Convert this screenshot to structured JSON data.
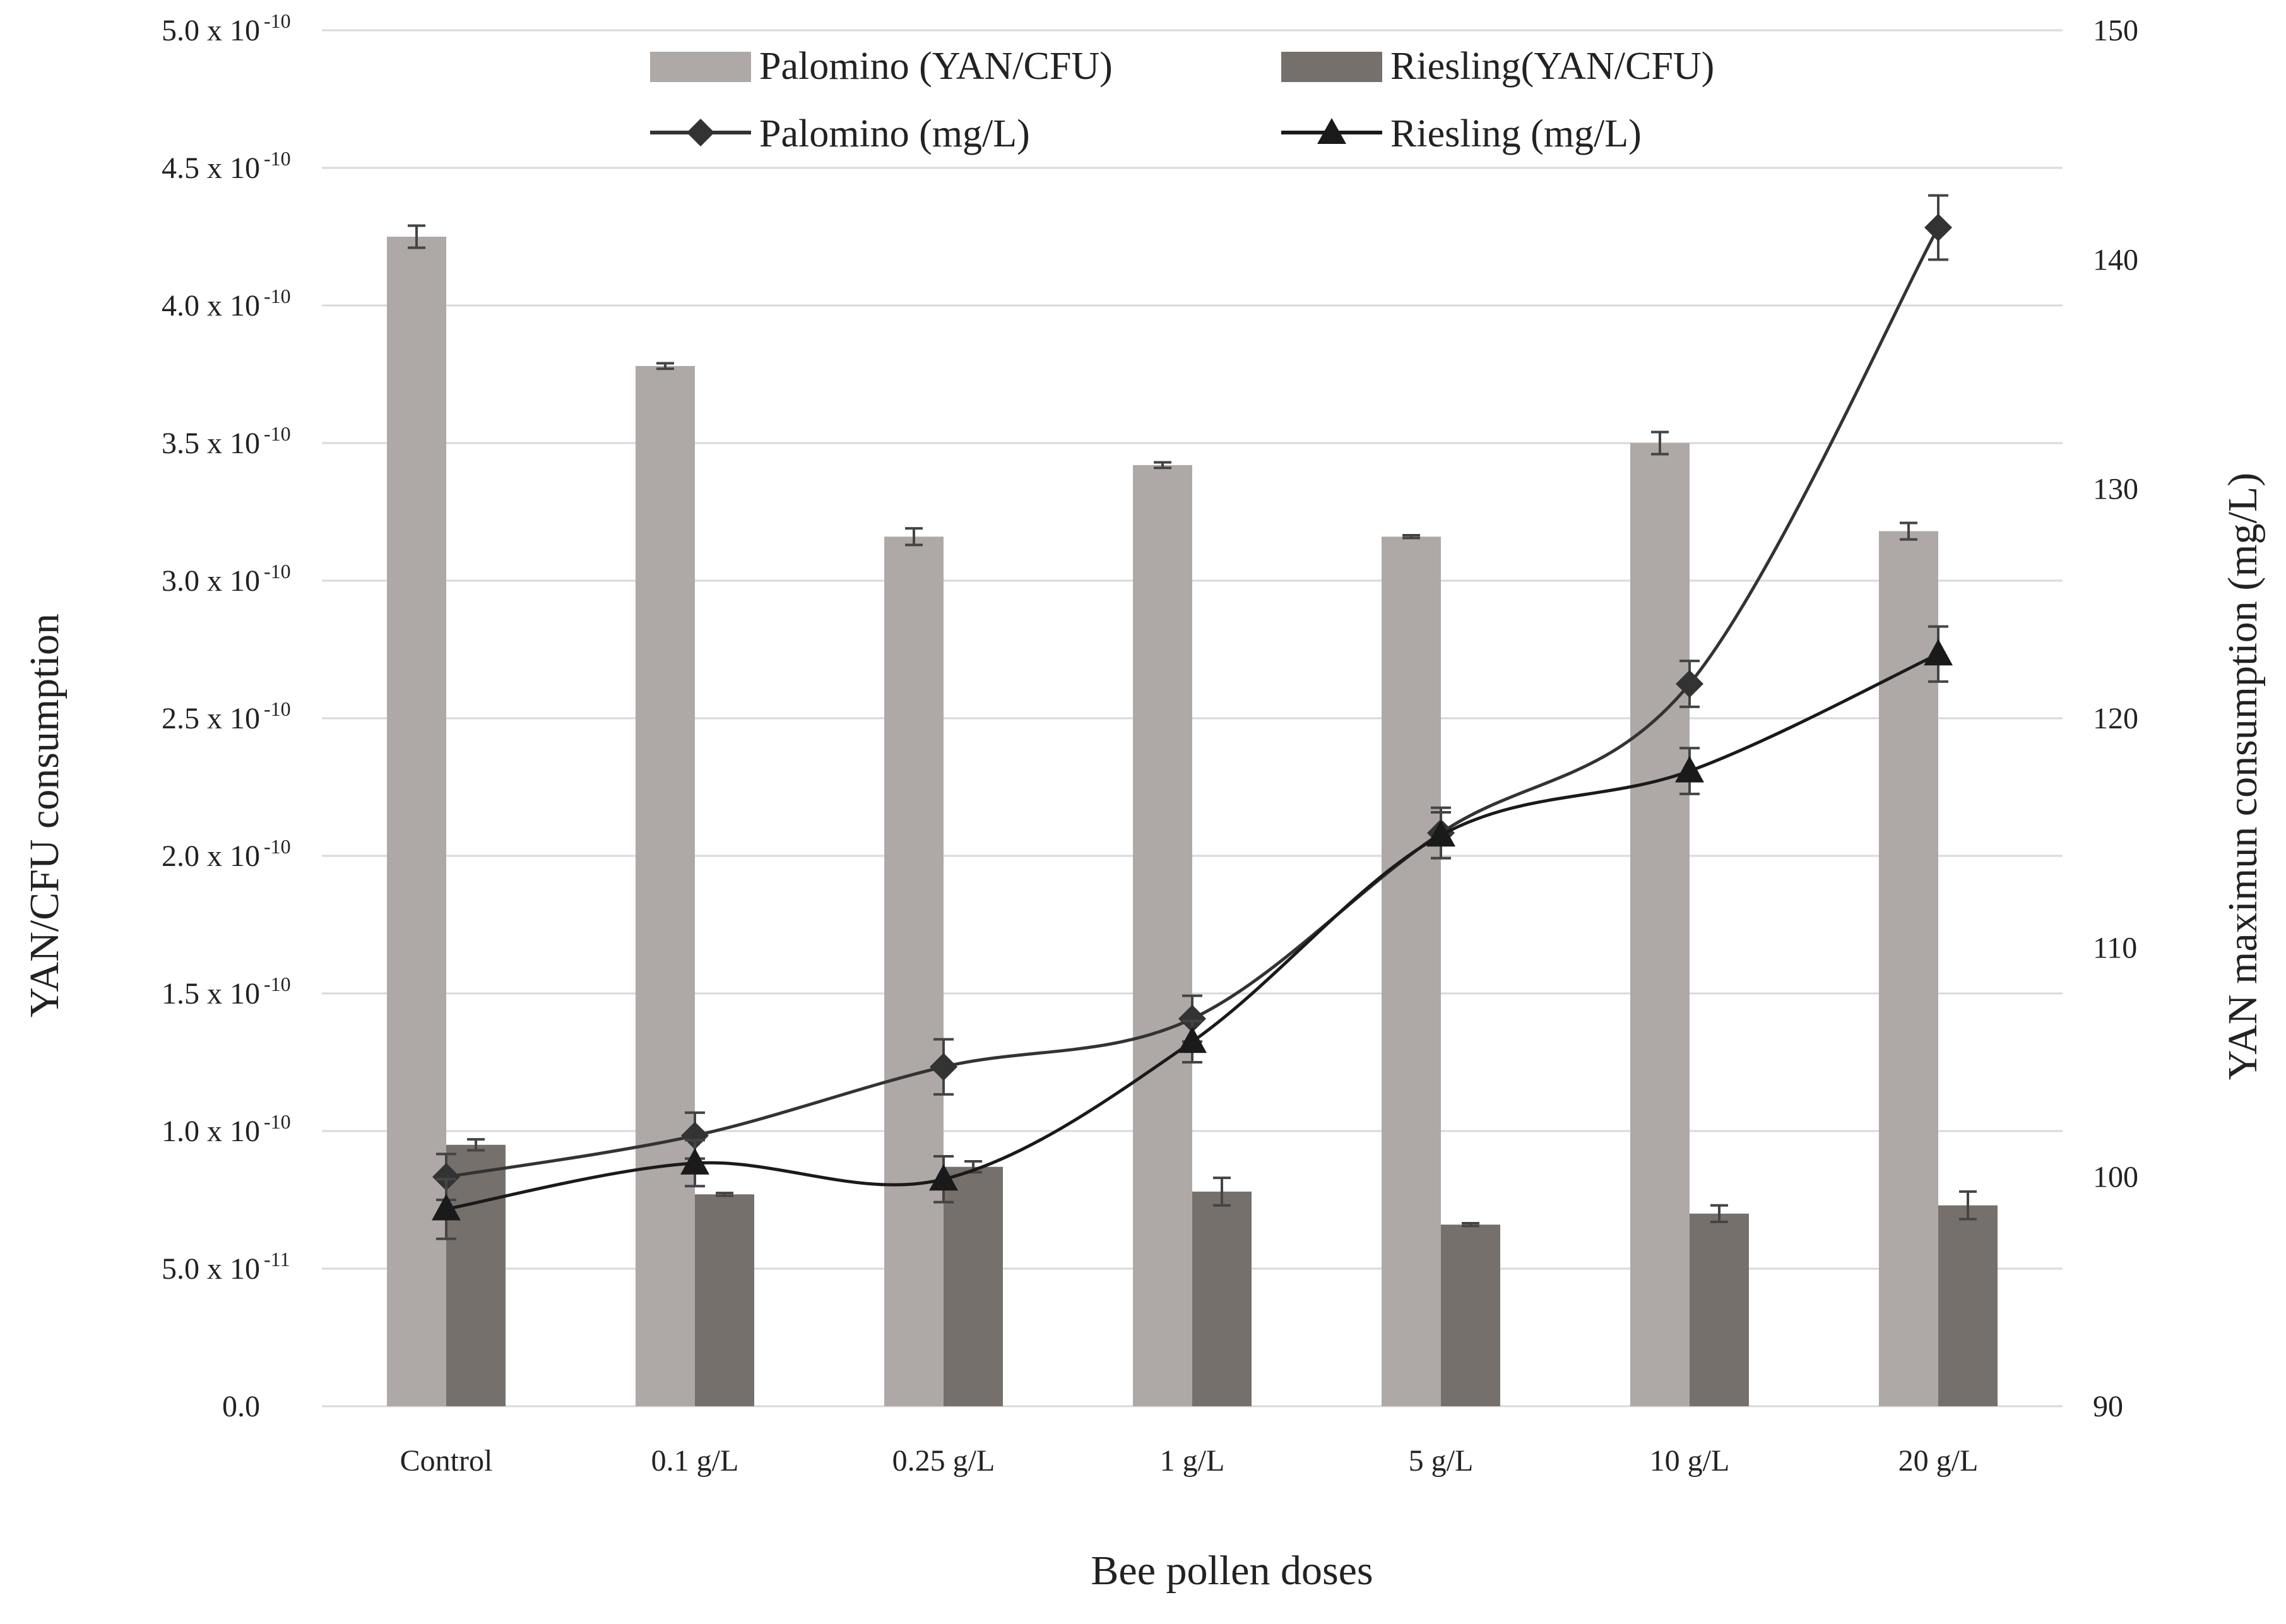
{
  "chart_data": {
    "type": "bar",
    "title": "",
    "xlabel": "Bee pollen doses",
    "ylabel": "YAN/CFU consumption",
    "y2label": "YAN maximun consumption (mg/L)",
    "categories": [
      "Control",
      "0.1 g/L",
      "0.25 g/L",
      "1 g/L",
      "5 g/L",
      "10 g/L",
      "20 g/L"
    ],
    "ylim": [
      0,
      5e-10
    ],
    "y2lim": [
      90,
      150
    ],
    "y_ticks": [
      {
        "value": 0,
        "label": "0.0",
        "exp": ""
      },
      {
        "value": 5e-11,
        "label": "5.0 x 10",
        "exp": "-11"
      },
      {
        "value": 1e-10,
        "label": "1.0 x 10",
        "exp": "-10"
      },
      {
        "value": 1.5e-10,
        "label": "1.5 x 10",
        "exp": "-10"
      },
      {
        "value": 2e-10,
        "label": "2.0 x 10",
        "exp": "-10"
      },
      {
        "value": 2.5e-10,
        "label": "2.5 x 10",
        "exp": "-10"
      },
      {
        "value": 3e-10,
        "label": "3.0 x 10",
        "exp": "-10"
      },
      {
        "value": 3.5e-10,
        "label": "3.5 x 10",
        "exp": "-10"
      },
      {
        "value": 4e-10,
        "label": "4.0 x 10",
        "exp": "-10"
      },
      {
        "value": 4.5e-10,
        "label": "4.5 x 10",
        "exp": "-10"
      },
      {
        "value": 5e-10,
        "label": "5.0 x 10",
        "exp": "-10"
      }
    ],
    "y2_ticks": [
      90,
      100,
      110,
      120,
      130,
      140,
      150
    ],
    "bar_series": [
      {
        "name": "Palomino (YAN/CFU)",
        "color": "#aea9a6",
        "values": [
          4.25e-10,
          3.78e-10,
          3.16e-10,
          3.42e-10,
          3.16e-10,
          3.5e-10,
          3.18e-10
        ],
        "errors": [
          4e-12,
          1e-12,
          3e-12,
          1e-12,
          5e-13,
          4e-12,
          3e-12
        ]
      },
      {
        "name": "Riesling(YAN/CFU)",
        "color": "#76706d",
        "values": [
          9.5e-11,
          7.7e-11,
          8.7e-11,
          7.8e-11,
          6.6e-11,
          7e-11,
          7.3e-11
        ],
        "errors": [
          2e-12,
          5e-13,
          2e-12,
          5e-12,
          5e-13,
          3e-12,
          5e-12
        ]
      }
    ],
    "line_series": [
      {
        "name": "Palomino (mg/L)",
        "marker": "diamond",
        "color": "#333333",
        "values": [
          100.0,
          101.8,
          104.8,
          106.9,
          115.0,
          121.5,
          141.4
        ],
        "errors": [
          1.0,
          1.0,
          1.2,
          1.0,
          1.1,
          1.0,
          1.4
        ]
      },
      {
        "name": "Riesling (mg/L)",
        "marker": "triangle",
        "color": "#1a1a1a",
        "values": [
          98.6,
          100.6,
          99.9,
          105.9,
          114.9,
          117.7,
          122.8
        ],
        "errors": [
          1.3,
          1.0,
          1.0,
          0.9,
          1.0,
          1.0,
          1.2
        ]
      }
    ],
    "legend": {
      "position": "top-center"
    }
  }
}
